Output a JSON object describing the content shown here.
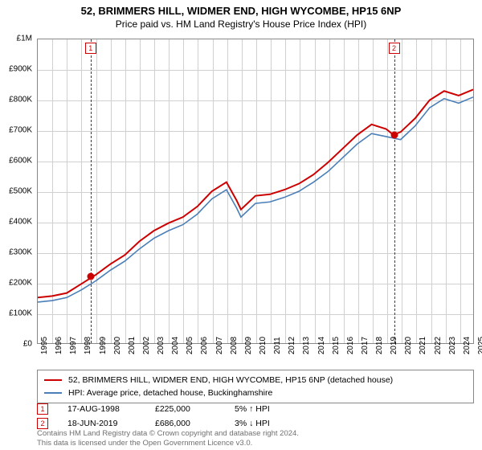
{
  "title": "52, BRIMMERS HILL, WIDMER END, HIGH WYCOMBE, HP15 6NP",
  "subtitle": "Price paid vs. HM Land Registry's House Price Index (HPI)",
  "chart": {
    "type": "line",
    "background_color": "#ffffff",
    "grid_color": "#d0d0d0",
    "border_color": "#888888",
    "ylim": [
      0,
      1000000
    ],
    "ytick_step": 100000,
    "y_labels": [
      "£0",
      "£100K",
      "£200K",
      "£300K",
      "£400K",
      "£500K",
      "£600K",
      "£700K",
      "£800K",
      "£900K",
      "£1M"
    ],
    "xlim": [
      1995,
      2025
    ],
    "x_labels": [
      "1995",
      "1996",
      "1997",
      "1998",
      "1999",
      "2000",
      "2001",
      "2002",
      "2003",
      "2004",
      "2005",
      "2006",
      "2007",
      "2008",
      "2009",
      "2010",
      "2011",
      "2012",
      "2013",
      "2014",
      "2015",
      "2016",
      "2017",
      "2018",
      "2019",
      "2020",
      "2021",
      "2022",
      "2023",
      "2024",
      "2025"
    ],
    "series": [
      {
        "name": "52, BRIMMERS HILL, WIDMER END, HIGH WYCOMBE, HP15 6NP (detached house)",
        "color": "#cc0000",
        "line_width": 2,
        "points": [
          [
            1995,
            150000
          ],
          [
            1996,
            155000
          ],
          [
            1997,
            165000
          ],
          [
            1998,
            195000
          ],
          [
            1999,
            225000
          ],
          [
            2000,
            260000
          ],
          [
            2001,
            290000
          ],
          [
            2002,
            335000
          ],
          [
            2003,
            370000
          ],
          [
            2004,
            395000
          ],
          [
            2005,
            415000
          ],
          [
            2006,
            450000
          ],
          [
            2007,
            500000
          ],
          [
            2008,
            530000
          ],
          [
            2008.7,
            470000
          ],
          [
            2009,
            440000
          ],
          [
            2010,
            485000
          ],
          [
            2011,
            490000
          ],
          [
            2012,
            505000
          ],
          [
            2013,
            525000
          ],
          [
            2014,
            555000
          ],
          [
            2015,
            595000
          ],
          [
            2016,
            640000
          ],
          [
            2017,
            685000
          ],
          [
            2018,
            720000
          ],
          [
            2019,
            705000
          ],
          [
            2019.5,
            686000
          ],
          [
            2020,
            695000
          ],
          [
            2021,
            740000
          ],
          [
            2022,
            800000
          ],
          [
            2023,
            830000
          ],
          [
            2024,
            815000
          ],
          [
            2025,
            835000
          ]
        ]
      },
      {
        "name": "HPI: Average price, detached house, Buckinghamshire",
        "color": "#4a7fb8",
        "line_width": 1.6,
        "points": [
          [
            1995,
            135000
          ],
          [
            1996,
            140000
          ],
          [
            1997,
            150000
          ],
          [
            1998,
            175000
          ],
          [
            1999,
            205000
          ],
          [
            2000,
            240000
          ],
          [
            2001,
            270000
          ],
          [
            2002,
            310000
          ],
          [
            2003,
            345000
          ],
          [
            2004,
            370000
          ],
          [
            2005,
            390000
          ],
          [
            2006,
            425000
          ],
          [
            2007,
            475000
          ],
          [
            2008,
            505000
          ],
          [
            2008.7,
            445000
          ],
          [
            2009,
            415000
          ],
          [
            2010,
            460000
          ],
          [
            2011,
            465000
          ],
          [
            2012,
            480000
          ],
          [
            2013,
            500000
          ],
          [
            2014,
            530000
          ],
          [
            2015,
            565000
          ],
          [
            2016,
            610000
          ],
          [
            2017,
            655000
          ],
          [
            2018,
            690000
          ],
          [
            2019,
            680000
          ],
          [
            2020,
            670000
          ],
          [
            2021,
            715000
          ],
          [
            2022,
            775000
          ],
          [
            2023,
            805000
          ],
          [
            2024,
            790000
          ],
          [
            2025,
            810000
          ]
        ]
      }
    ],
    "markers": [
      {
        "n": "1",
        "x": 1998.63,
        "y": 225000
      },
      {
        "n": "2",
        "x": 2019.46,
        "y": 686000
      }
    ],
    "label_fontsize": 10,
    "title_fontsize": 13
  },
  "legend": {
    "items": [
      {
        "color": "#cc0000",
        "label": "52, BRIMMERS HILL, WIDMER END, HIGH WYCOMBE, HP15 6NP (detached house)"
      },
      {
        "color": "#4a7fb8",
        "label": "HPI: Average price, detached house, Buckinghamshire"
      }
    ]
  },
  "events": [
    {
      "n": "1",
      "date": "17-AUG-1998",
      "price": "£225,000",
      "pct": "5% ↑ HPI"
    },
    {
      "n": "2",
      "date": "18-JUN-2019",
      "price": "£686,000",
      "pct": "3% ↓ HPI"
    }
  ],
  "footer": {
    "line1": "Contains HM Land Registry data © Crown copyright and database right 2024.",
    "line2": "This data is licensed under the Open Government Licence v3.0."
  }
}
